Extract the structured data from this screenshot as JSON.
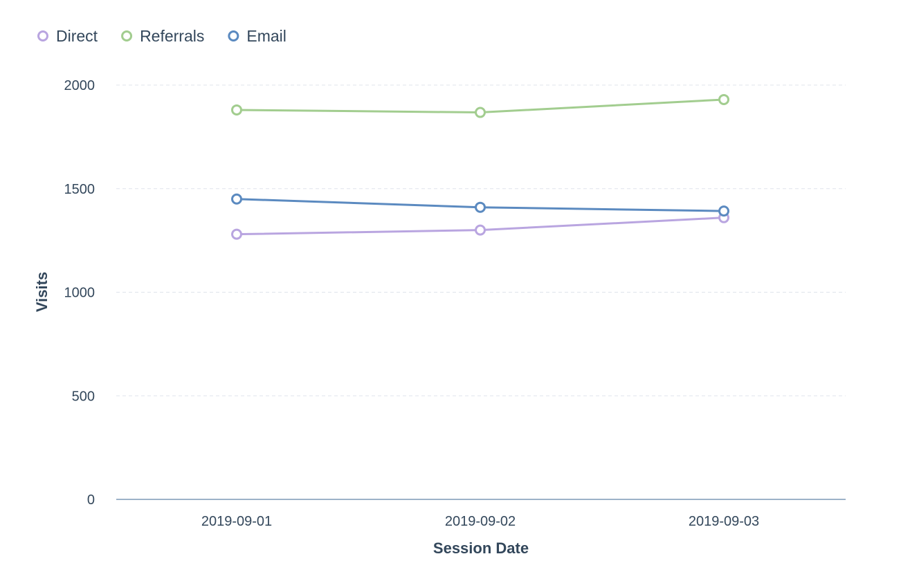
{
  "chart_data": {
    "type": "line",
    "xlabel": "Session Date",
    "ylabel": "Visits",
    "categories": [
      "2019-09-01",
      "2019-09-02",
      "2019-09-03"
    ],
    "ylim": [
      0,
      2000
    ],
    "yticks": [
      0,
      500,
      1000,
      1500,
      2000
    ],
    "grid": true,
    "legend_position": "top-left",
    "series": [
      {
        "name": "Direct",
        "color": "#b9a5e0",
        "values": [
          1280,
          1300,
          1360
        ]
      },
      {
        "name": "Referrals",
        "color": "#a2cd8f",
        "values": [
          1880,
          1868,
          1930
        ]
      },
      {
        "name": "Email",
        "color": "#5b8ac0",
        "values": [
          1450,
          1410,
          1392
        ]
      }
    ]
  }
}
